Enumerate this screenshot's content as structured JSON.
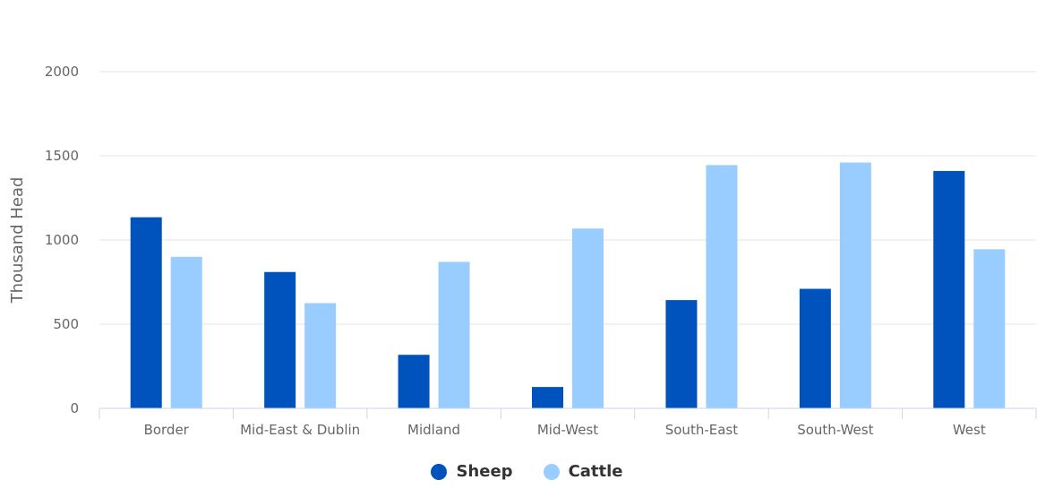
{
  "chart_data": {
    "type": "bar",
    "ylabel": "Thousand Head",
    "ylim": [
      0,
      2000
    ],
    "yticks": [
      0,
      500,
      1000,
      1500,
      2000
    ],
    "categories": [
      "Border",
      "Mid-East & Dublin",
      "Midland",
      "Mid-West",
      "South-East",
      "South-West",
      "West"
    ],
    "series": [
      {
        "name": "Sheep",
        "color": "#0052bd",
        "values": [
          1135,
          810,
          318,
          127,
          643,
          710,
          1410
        ]
      },
      {
        "name": "Cattle",
        "color": "#99ccff",
        "values": [
          900,
          625,
          870,
          1068,
          1445,
          1460,
          945
        ]
      }
    ],
    "grid": true,
    "legend_position": "bottom-center"
  }
}
